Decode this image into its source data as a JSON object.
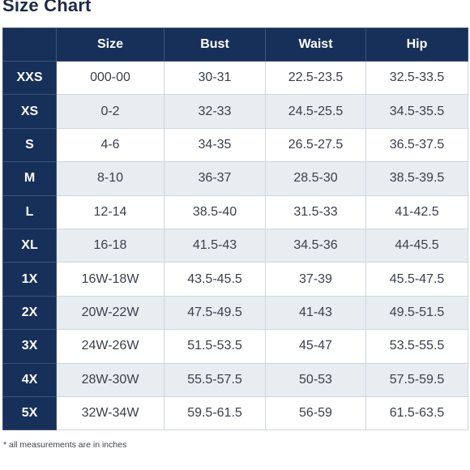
{
  "title": "Size Chart",
  "table": {
    "headers": [
      "",
      "Size",
      "Bust",
      "Waist",
      "Hip"
    ],
    "rows": [
      {
        "label": "XXS",
        "size": "000-00",
        "bust": "30-31",
        "waist": "22.5-23.5",
        "hip": "32.5-33.5"
      },
      {
        "label": "XS",
        "size": "0-2",
        "bust": "32-33",
        "waist": "24.5-25.5",
        "hip": "34.5-35.5"
      },
      {
        "label": "S",
        "size": "4-6",
        "bust": "34-35",
        "waist": "26.5-27.5",
        "hip": "36.5-37.5"
      },
      {
        "label": "M",
        "size": "8-10",
        "bust": "36-37",
        "waist": "28.5-30",
        "hip": "38.5-39.5"
      },
      {
        "label": "L",
        "size": "12-14",
        "bust": "38.5-40",
        "waist": "31.5-33",
        "hip": "41-42.5"
      },
      {
        "label": "XL",
        "size": "16-18",
        "bust": "41.5-43",
        "waist": "34.5-36",
        "hip": "44-45.5"
      },
      {
        "label": "1X",
        "size": "16W-18W",
        "bust": "43.5-45.5",
        "waist": "37-39",
        "hip": "45.5-47.5"
      },
      {
        "label": "2X",
        "size": "20W-22W",
        "bust": "47.5-49.5",
        "waist": "41-43",
        "hip": "49.5-51.5"
      },
      {
        "label": "3X",
        "size": "24W-26W",
        "bust": "51.5-53.5",
        "waist": "45-47",
        "hip": "53.5-55.5"
      },
      {
        "label": "4X",
        "size": "28W-30W",
        "bust": "55.5-57.5",
        "waist": "50-53",
        "hip": "57.5-59.5"
      },
      {
        "label": "5X",
        "size": "32W-34W",
        "bust": "59.5-61.5",
        "waist": "56-59",
        "hip": "61.5-63.5"
      }
    ]
  },
  "footnote": "* all measurements are in inches",
  "colors": {
    "header_bg": "#17305a",
    "stripe_bg": "#e8edf2",
    "title": "#1d2a45"
  }
}
